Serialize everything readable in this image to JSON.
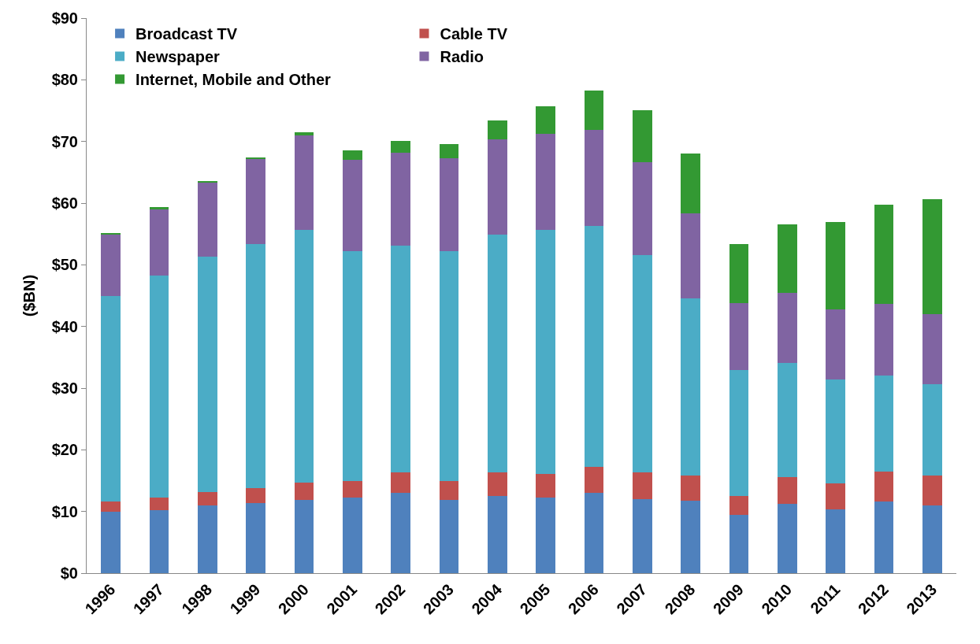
{
  "chart_data": {
    "type": "bar",
    "stacked": true,
    "ylabel": "($BN)",
    "categories": [
      "1996",
      "1997",
      "1998",
      "1999",
      "2000",
      "2001",
      "2002",
      "2003",
      "2004",
      "2005",
      "2006",
      "2007",
      "2008",
      "2009",
      "2010",
      "2011",
      "2012",
      "2013"
    ],
    "series": [
      {
        "name": "Broadcast TV",
        "color": "#4f81bd",
        "values": [
          10.0,
          10.2,
          11.0,
          11.4,
          11.9,
          12.3,
          13.0,
          11.9,
          12.5,
          12.3,
          13.0,
          12.0,
          11.8,
          9.4,
          11.2,
          10.3,
          11.6,
          11.0
        ]
      },
      {
        "name": "Cable TV",
        "color": "#c0504d",
        "values": [
          1.6,
          2.0,
          2.1,
          2.4,
          2.8,
          2.6,
          3.3,
          3.0,
          3.8,
          3.8,
          4.2,
          4.3,
          4.0,
          3.1,
          4.4,
          4.2,
          4.9,
          4.8
        ]
      },
      {
        "name": "Newspaper",
        "color": "#4bacc6",
        "values": [
          33.4,
          36.0,
          38.2,
          39.6,
          40.9,
          37.3,
          36.8,
          37.3,
          38.6,
          39.5,
          39.1,
          35.3,
          28.8,
          20.4,
          18.5,
          16.9,
          15.6,
          14.9
        ]
      },
      {
        "name": "Radio",
        "color": "#8064a2",
        "values": [
          10.0,
          10.8,
          12.0,
          13.7,
          15.4,
          14.8,
          15.1,
          15.1,
          15.4,
          15.6,
          15.6,
          15.1,
          13.7,
          10.9,
          11.3,
          11.4,
          11.5,
          11.3
        ]
      },
      {
        "name": "Internet, Mobile and Other",
        "color": "#339933",
        "values": [
          0.2,
          0.3,
          0.3,
          0.3,
          0.5,
          1.5,
          1.9,
          2.3,
          3.1,
          4.5,
          6.3,
          8.4,
          9.8,
          9.5,
          11.1,
          14.2,
          16.1,
          18.6
        ]
      }
    ],
    "ylim": [
      0,
      90
    ],
    "yticks": [
      {
        "value": 0,
        "label": "$0"
      },
      {
        "value": 10,
        "label": "$10"
      },
      {
        "value": 20,
        "label": "$20"
      },
      {
        "value": 30,
        "label": "$30"
      },
      {
        "value": 40,
        "label": "$40"
      },
      {
        "value": 50,
        "label": "$50"
      },
      {
        "value": 60,
        "label": "$60"
      },
      {
        "value": 70,
        "label": "$70"
      },
      {
        "value": 80,
        "label": "$80"
      },
      {
        "value": 90,
        "label": "$90"
      }
    ],
    "legend": "top left"
  }
}
